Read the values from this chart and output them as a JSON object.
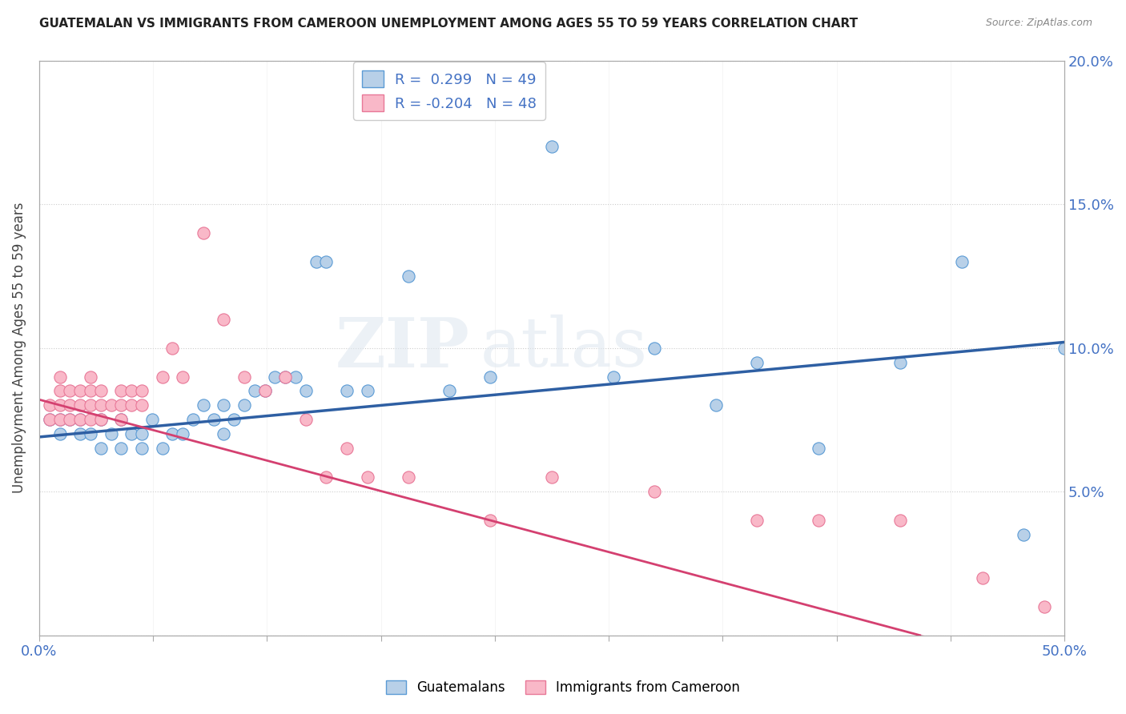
{
  "title": "GUATEMALAN VS IMMIGRANTS FROM CAMEROON UNEMPLOYMENT AMONG AGES 55 TO 59 YEARS CORRELATION CHART",
  "source": "Source: ZipAtlas.com",
  "ylabel": "Unemployment Among Ages 55 to 59 years",
  "legend_label1": "Guatemalans",
  "legend_label2": "Immigrants from Cameroon",
  "R1": 0.299,
  "N1": 49,
  "R2": -0.204,
  "N2": 48,
  "xlim": [
    0,
    0.5
  ],
  "ylim": [
    0,
    0.2
  ],
  "yticks": [
    0.0,
    0.05,
    0.1,
    0.15,
    0.2
  ],
  "xticks": [
    0.0,
    0.05556,
    0.11111,
    0.16667,
    0.22222,
    0.27778,
    0.33333,
    0.38889,
    0.44444,
    0.5
  ],
  "blue_scatter_color": "#b8d0e8",
  "blue_edge_color": "#5b9bd5",
  "pink_scatter_color": "#f9b8c8",
  "pink_edge_color": "#e87898",
  "blue_line_color": "#2e5fa3",
  "pink_line_color": "#d44070",
  "background_color": "#ffffff",
  "blue_scatter_x": [
    0.005,
    0.01,
    0.01,
    0.015,
    0.02,
    0.02,
    0.025,
    0.03,
    0.03,
    0.035,
    0.04,
    0.04,
    0.045,
    0.05,
    0.05,
    0.055,
    0.06,
    0.065,
    0.07,
    0.075,
    0.08,
    0.085,
    0.09,
    0.09,
    0.095,
    0.1,
    0.105,
    0.11,
    0.115,
    0.12,
    0.125,
    0.13,
    0.135,
    0.14,
    0.15,
    0.16,
    0.18,
    0.2,
    0.22,
    0.25,
    0.28,
    0.3,
    0.33,
    0.35,
    0.38,
    0.42,
    0.45,
    0.48,
    0.5
  ],
  "blue_scatter_y": [
    0.075,
    0.07,
    0.075,
    0.075,
    0.07,
    0.075,
    0.07,
    0.065,
    0.075,
    0.07,
    0.065,
    0.075,
    0.07,
    0.065,
    0.07,
    0.075,
    0.065,
    0.07,
    0.07,
    0.075,
    0.08,
    0.075,
    0.07,
    0.08,
    0.075,
    0.08,
    0.085,
    0.085,
    0.09,
    0.09,
    0.09,
    0.085,
    0.13,
    0.13,
    0.085,
    0.085,
    0.125,
    0.085,
    0.09,
    0.17,
    0.09,
    0.1,
    0.08,
    0.095,
    0.065,
    0.095,
    0.13,
    0.035,
    0.1
  ],
  "pink_scatter_x": [
    0.005,
    0.005,
    0.01,
    0.01,
    0.01,
    0.01,
    0.015,
    0.015,
    0.015,
    0.02,
    0.02,
    0.02,
    0.025,
    0.025,
    0.025,
    0.025,
    0.03,
    0.03,
    0.03,
    0.035,
    0.04,
    0.04,
    0.04,
    0.045,
    0.045,
    0.05,
    0.05,
    0.06,
    0.065,
    0.07,
    0.08,
    0.09,
    0.1,
    0.11,
    0.12,
    0.13,
    0.14,
    0.15,
    0.16,
    0.18,
    0.22,
    0.25,
    0.3,
    0.35,
    0.38,
    0.42,
    0.46,
    0.49
  ],
  "pink_scatter_y": [
    0.075,
    0.08,
    0.075,
    0.08,
    0.085,
    0.09,
    0.075,
    0.08,
    0.085,
    0.075,
    0.08,
    0.085,
    0.075,
    0.08,
    0.085,
    0.09,
    0.075,
    0.08,
    0.085,
    0.08,
    0.075,
    0.08,
    0.085,
    0.08,
    0.085,
    0.08,
    0.085,
    0.09,
    0.1,
    0.09,
    0.14,
    0.11,
    0.09,
    0.085,
    0.09,
    0.075,
    0.055,
    0.065,
    0.055,
    0.055,
    0.04,
    0.055,
    0.05,
    0.04,
    0.04,
    0.04,
    0.02,
    0.01
  ],
  "blue_trend_x0": 0.0,
  "blue_trend_y0": 0.069,
  "blue_trend_x1": 0.5,
  "blue_trend_y1": 0.102,
  "pink_trend_x0": 0.0,
  "pink_trend_y0": 0.082,
  "pink_trend_x1": 0.22,
  "pink_trend_y1": 0.04
}
